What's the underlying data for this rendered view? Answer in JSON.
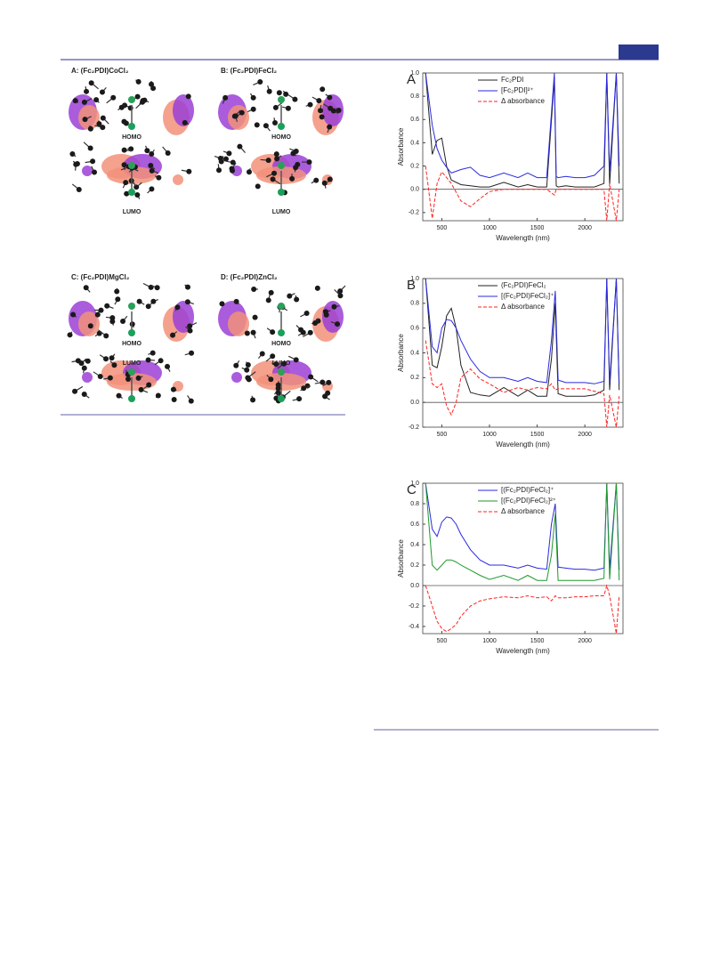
{
  "figure_left": {
    "panels": [
      {
        "title": "A: (Fc₂PDI)CoCl₂",
        "homo": "HOMO",
        "lumo": "LUMO"
      },
      {
        "title": "B: (Fc₂PDI)FeCl₂",
        "homo": "HOMO",
        "lumo": "LUMO"
      },
      {
        "title": "C: (Fc₂PDI)MgCl₂",
        "homo": "HOMO",
        "lumo": "LUMO"
      },
      {
        "title": "D: (Fc₂PDI)ZnCl₂",
        "homo": "HOMO",
        "lumo": "LUMO"
      }
    ]
  },
  "chart_data": [
    {
      "type": "line",
      "label": "A",
      "xlabel": "Wavelength (nm)",
      "ylabel": "Absorbance",
      "xlim": [
        300,
        2400
      ],
      "xticks": [
        500,
        1000,
        1500,
        2000
      ],
      "ylim": [
        -0.27,
        1.0
      ],
      "yticks": [
        -0.2,
        {
          "value": 0,
          "label": "0.0"
        },
        0.2,
        0.4,
        0.6,
        0.8,
        {
          "value": 1,
          "label": "1.0"
        }
      ],
      "legend": "upper right",
      "x": [
        330,
        400,
        450,
        500,
        550,
        600,
        700,
        800,
        900,
        1000,
        1150,
        1300,
        1400,
        1500,
        1600,
        1680,
        1700,
        1720,
        1800,
        1900,
        2000,
        2100,
        2200,
        2230,
        2260,
        2330,
        2360
      ],
      "series": [
        {
          "name": "Fc₂PDI",
          "color": "#222222",
          "style": "solid",
          "values": [
            1.0,
            0.3,
            0.42,
            0.44,
            0.2,
            0.08,
            0.04,
            0.03,
            0.02,
            0.02,
            0.06,
            0.02,
            0.04,
            0.02,
            0.02,
            0.95,
            0.03,
            0.02,
            0.03,
            0.02,
            0.02,
            0.02,
            0.05,
            1.0,
            0.04,
            1.0,
            0.05
          ]
        },
        {
          "name": "[Fc₂PDI]²⁺",
          "color": "#2a2ae0",
          "style": "solid",
          "values": [
            1.0,
            0.55,
            0.35,
            0.25,
            0.19,
            0.14,
            0.17,
            0.19,
            0.12,
            0.1,
            0.14,
            0.1,
            0.14,
            0.1,
            0.1,
            1.0,
            0.11,
            0.1,
            0.11,
            0.1,
            0.1,
            0.12,
            0.2,
            1.0,
            0.15,
            1.0,
            0.2
          ]
        },
        {
          "name": "Δ absorbance",
          "color": "#ff2020",
          "style": "dashed",
          "values": [
            0.2,
            -0.25,
            0.05,
            0.15,
            0.1,
            0.05,
            -0.1,
            -0.15,
            -0.08,
            -0.02,
            0.0,
            0.0,
            0.0,
            0.0,
            0.0,
            -0.05,
            0.0,
            0.0,
            0.0,
            0.0,
            0.0,
            0.0,
            0.0,
            -0.27,
            0.05,
            -0.27,
            0.0
          ]
        }
      ]
    },
    {
      "type": "line",
      "label": "B",
      "xlabel": "Wavelength (nm)",
      "ylabel": "Absorbance",
      "xlim": [
        300,
        2400
      ],
      "xticks": [
        500,
        1000,
        1500,
        2000
      ],
      "ylim": [
        -0.2,
        1.0
      ],
      "yticks": [
        -0.2,
        {
          "value": 0,
          "label": "0.0"
        },
        0.2,
        0.4,
        0.6,
        0.8,
        {
          "value": 1,
          "label": "1.0"
        }
      ],
      "legend": "upper right",
      "x": [
        330,
        400,
        450,
        500,
        550,
        600,
        650,
        700,
        800,
        900,
        1000,
        1150,
        1300,
        1400,
        1500,
        1600,
        1650,
        1690,
        1720,
        1800,
        1900,
        2000,
        2100,
        2200,
        2230,
        2260,
        2330,
        2360
      ],
      "series": [
        {
          "name": "(Fc₂PDI)FeCl₂",
          "color": "#222222",
          "style": "solid",
          "values": [
            1.0,
            0.3,
            0.28,
            0.45,
            0.7,
            0.76,
            0.6,
            0.3,
            0.08,
            0.06,
            0.05,
            0.12,
            0.05,
            0.1,
            0.05,
            0.05,
            0.35,
            0.8,
            0.07,
            0.05,
            0.05,
            0.05,
            0.06,
            0.1,
            1.0,
            0.1,
            1.0,
            0.1
          ]
        },
        {
          "name": "[(Fc₂PDI)FeCl₂]⁺",
          "color": "#2a2ae0",
          "style": "solid",
          "values": [
            1.0,
            0.45,
            0.4,
            0.6,
            0.67,
            0.66,
            0.6,
            0.5,
            0.35,
            0.25,
            0.2,
            0.2,
            0.17,
            0.2,
            0.17,
            0.16,
            0.5,
            0.9,
            0.18,
            0.16,
            0.16,
            0.16,
            0.15,
            0.17,
            1.0,
            0.16,
            1.0,
            0.15
          ]
        },
        {
          "name": "Δ absorbance",
          "color": "#ff2020",
          "style": "dashed",
          "values": [
            0.5,
            0.15,
            0.12,
            0.15,
            -0.03,
            -0.1,
            0.0,
            0.2,
            0.27,
            0.19,
            0.15,
            0.08,
            0.12,
            0.1,
            0.12,
            0.11,
            0.15,
            0.1,
            0.11,
            0.11,
            0.11,
            0.11,
            0.09,
            0.07,
            -0.2,
            0.06,
            -0.2,
            0.05
          ]
        }
      ]
    },
    {
      "type": "line",
      "label": "C",
      "xlabel": "Wavelength (nm)",
      "ylabel": "Absorbance",
      "xlim": [
        300,
        2400
      ],
      "xticks": [
        500,
        1000,
        1500,
        2000
      ],
      "ylim": [
        -0.47,
        1.0
      ],
      "yticks": [
        -0.4,
        -0.2,
        {
          "value": 0,
          "label": "0.0"
        },
        0.2,
        0.4,
        0.6,
        0.8,
        {
          "value": 1,
          "label": "1.0"
        }
      ],
      "legend": "upper right",
      "x": [
        330,
        400,
        450,
        500,
        550,
        600,
        650,
        700,
        800,
        900,
        1000,
        1150,
        1300,
        1400,
        1500,
        1600,
        1650,
        1690,
        1720,
        1800,
        1900,
        2000,
        2100,
        2200,
        2230,
        2260,
        2330,
        2360
      ],
      "series": [
        {
          "name": "[(Fc₂PDI)FeCl₂]⁺",
          "color": "#2a2ae0",
          "style": "solid",
          "values": [
            1.0,
            0.55,
            0.48,
            0.62,
            0.67,
            0.66,
            0.6,
            0.5,
            0.35,
            0.25,
            0.2,
            0.2,
            0.17,
            0.2,
            0.17,
            0.16,
            0.6,
            0.8,
            0.18,
            0.17,
            0.16,
            0.16,
            0.15,
            0.17,
            1.0,
            0.16,
            1.0,
            0.15
          ]
        },
        {
          "name": "[(Fc₂PDI)FeCl₂]²⁺",
          "color": "#1e9a2a",
          "style": "solid",
          "values": [
            1.0,
            0.2,
            0.15,
            0.2,
            0.25,
            0.25,
            0.23,
            0.2,
            0.15,
            0.1,
            0.06,
            0.1,
            0.05,
            0.1,
            0.05,
            0.05,
            0.3,
            0.7,
            0.05,
            0.05,
            0.05,
            0.05,
            0.05,
            0.07,
            1.0,
            0.06,
            1.0,
            0.05
          ]
        },
        {
          "name": "Δ absorbance",
          "color": "#ff2020",
          "style": "dashed",
          "values": [
            0.0,
            -0.2,
            -0.35,
            -0.42,
            -0.45,
            -0.42,
            -0.38,
            -0.3,
            -0.2,
            -0.15,
            -0.13,
            -0.11,
            -0.12,
            -0.1,
            -0.12,
            -0.11,
            -0.15,
            -0.1,
            -0.12,
            -0.12,
            -0.11,
            -0.11,
            -0.1,
            -0.1,
            0.0,
            -0.1,
            -0.47,
            -0.1
          ]
        }
      ]
    }
  ]
}
